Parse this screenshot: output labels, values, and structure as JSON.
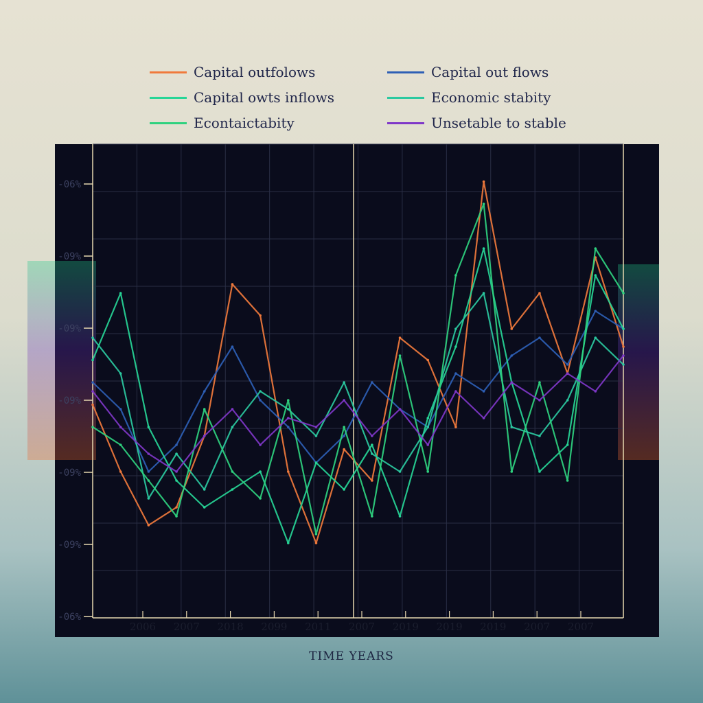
{
  "chart_data": {
    "type": "line",
    "title": "",
    "xlabel": "TIME YEARS",
    "ylabel": "",
    "legend_position": "top",
    "grid": true,
    "y_tick_labels": [
      "-06%",
      "-09%",
      "-09%",
      "-09%",
      "-09%",
      "-09%",
      "-06%"
    ],
    "x_tick_labels": [
      "2006",
      "2007",
      "2018",
      "2099",
      "2011",
      "2007",
      "2019",
      "2019",
      "2019",
      "2007",
      "2007"
    ],
    "ylim": [
      0,
      100
    ],
    "legend": [
      {
        "label": "Capital outfolows",
        "color": "#f07a3c"
      },
      {
        "label": "Capital out flows",
        "color": "#2e5fb5"
      },
      {
        "label": "Capital owts inflows",
        "color": "#27d596"
      },
      {
        "label": "Economic stabity",
        "color": "#2bc9a0"
      },
      {
        "label": "Econtaictabity",
        "color": "#2fd27f"
      },
      {
        "label": "Unsetable to stable",
        "color": "#7f37c8"
      }
    ],
    "series": [
      {
        "name": "Capital outfolows",
        "color": "#f07a3c",
        "values": [
          45,
          30,
          18,
          22,
          38,
          72,
          65,
          30,
          14,
          35,
          28,
          60,
          55,
          40,
          95,
          62,
          70,
          52,
          78,
          58
        ]
      },
      {
        "name": "Capital out flows",
        "color": "#2e5fb5",
        "values": [
          50,
          44,
          30,
          36,
          48,
          58,
          46,
          40,
          32,
          38,
          50,
          44,
          40,
          52,
          48,
          56,
          60,
          54,
          66,
          62
        ]
      },
      {
        "name": "Capital owts inflows",
        "color": "#27d596",
        "values": [
          55,
          70,
          40,
          28,
          22,
          26,
          30,
          14,
          32,
          26,
          36,
          20,
          42,
          58,
          80,
          50,
          30,
          36,
          74,
          62
        ]
      },
      {
        "name": "Economic stabity",
        "color": "#2bc9a0",
        "values": [
          60,
          52,
          24,
          34,
          26,
          40,
          48,
          44,
          38,
          50,
          34,
          30,
          40,
          62,
          70,
          40,
          38,
          46,
          60,
          54
        ]
      },
      {
        "name": "Econtaictabity",
        "color": "#2fd27f",
        "values": [
          40,
          36,
          28,
          20,
          44,
          30,
          24,
          46,
          16,
          40,
          20,
          56,
          30,
          74,
          90,
          30,
          50,
          28,
          80,
          70
        ]
      },
      {
        "name": "Unsetable to stable",
        "color": "#7f37c8",
        "values": [
          48,
          40,
          34,
          30,
          38,
          44,
          36,
          42,
          40,
          46,
          38,
          44,
          36,
          48,
          42,
          50,
          46,
          52,
          48,
          56
        ]
      }
    ]
  }
}
